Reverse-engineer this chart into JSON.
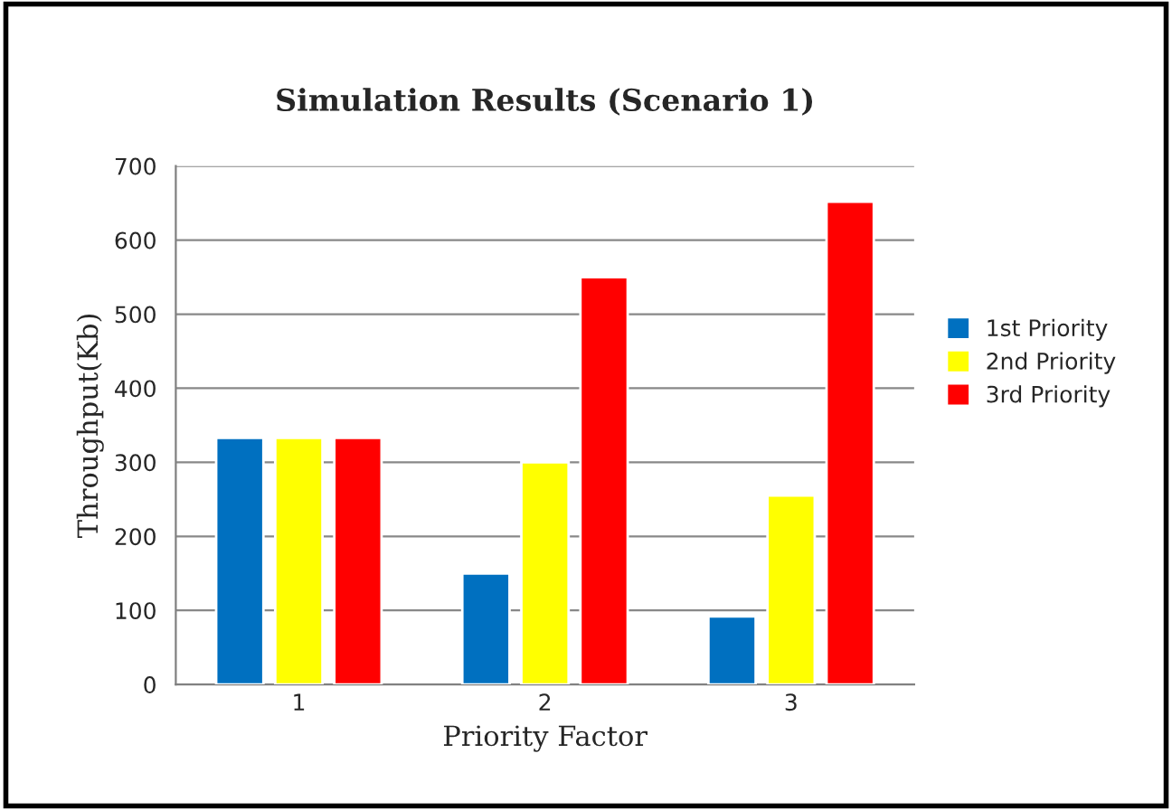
{
  "chart_data": {
    "type": "bar",
    "title": "Simulation Results (Scenario 1)",
    "xlabel": "Priority Factor",
    "ylabel": "Throughput(Kb)",
    "categories": [
      "1",
      "2",
      "3"
    ],
    "series": [
      {
        "name": "1st Priority",
        "color": "#0070c0",
        "values": [
          333,
          150,
          92
        ]
      },
      {
        "name": "2nd Priority",
        "color": "#ffff00",
        "values": [
          333,
          300,
          255
        ]
      },
      {
        "name": "3rd Priority",
        "color": "#ff0000",
        "values": [
          333,
          550,
          652
        ]
      }
    ],
    "ylim": [
      0,
      700
    ],
    "yticks": [
      0,
      100,
      200,
      300,
      400,
      500,
      600,
      700
    ],
    "grid": "y",
    "legend": "right"
  }
}
